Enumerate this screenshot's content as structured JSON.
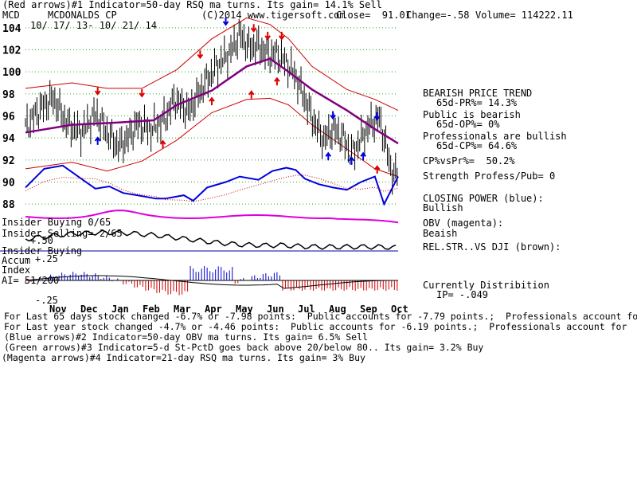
{
  "header": {
    "line1": "(Red arrows)#1 Indicator=50-day RSQ ma turns. Its gain= 14.1% Sell",
    "ticker": "MCD",
    "company": "MCDONALDS CP",
    "copyright": "(C)2014 www.tigersoft.com",
    "close": "Close=  91.01",
    "change": "Change=-.58",
    "volume": "Volume= 114222.11",
    "dates": "10/ 17/ 13- 10/ 21/ 14"
  },
  "panels": {
    "insider_buying": "Insider Buying 0/65",
    "insider_selling": "Insider Selling= 2/65",
    "plus50": "+.50",
    "accum1": "Insider Buying",
    "accum2": "Accum",
    "accum3": "Index",
    "plus25": "+.25",
    "ai": "AI= 51/200",
    "minus25": "-.25"
  },
  "right_panel": {
    "trend": "BEARISH PRICE TREND",
    "pr": "65d-PR%= 14.3%",
    "public1": "Public is bearish",
    "op": "65d-OP%= 0%",
    "pros1": "Professionals are bullish",
    "cp": "65d-CP%= 64.6%",
    "cpvspr": "CP%vsPr%=  50.2%",
    "strength": "Strength Profess/Pub= 0",
    "closing1": "CLOSING POWER (blue):",
    "closing2": "Bullish",
    "obv1": "OBV (magenta):",
    "obv2": "Beaish",
    "relstr": "REL.STR..VS DJI (brown):",
    "dist1": "Currently Distribition",
    "dist2": "IP= -.049"
  },
  "footer": [
    "For Last 65 days stock changed -6.7% or -7.98 points:  Public accounts for -7.79 points.;  Professionals account for -.19 points.",
    "For Last year stock changed -4.7% or -4.46 points:  Public accounts for -6.19 points.;  Professionals account for  1.73 points.",
    "(Blue arrows)#2 Indicator=50-day OBV ma turns. Its gain= 6.5% Sell",
    "(Green arrows)#3 Indicator=5-d St-PctD goes back above 20/below 80.. Its gain= 3.2% Buy",
    "(Magenta arrows)#4 Indicator=21-day RSQ ma turns. Its gain= 3% Buy"
  ],
  "chart_data": {
    "type": "line",
    "x_labels": [
      "Nov",
      "Dec",
      "Jan",
      "Feb",
      "Mar",
      "Apr",
      "May",
      "Jun",
      "Jul",
      "Aug",
      "Sep",
      "Oct"
    ],
    "price_ticks": [
      88,
      90,
      92,
      94,
      96,
      98,
      100,
      102,
      104
    ],
    "ylim": [
      87,
      105
    ],
    "price": [
      [
        0,
        95.0
      ],
      [
        6,
        96.6
      ],
      [
        12,
        97.6
      ],
      [
        18,
        95.2
      ],
      [
        24,
        94.5
      ],
      [
        30,
        96.2
      ],
      [
        36,
        94.2
      ],
      [
        40,
        93.2
      ],
      [
        44,
        94.0
      ],
      [
        48,
        95.3
      ],
      [
        54,
        94.7
      ],
      [
        60,
        95.8
      ],
      [
        64,
        97.5
      ],
      [
        70,
        96.4
      ],
      [
        76,
        98.6
      ],
      [
        82,
        100.5
      ],
      [
        88,
        101.8
      ],
      [
        92,
        103.4
      ],
      [
        96,
        102.2
      ],
      [
        100,
        102.4
      ],
      [
        104,
        101.5
      ],
      [
        108,
        101.6
      ],
      [
        112,
        100.8
      ],
      [
        116,
        99.6
      ],
      [
        120,
        97.5
      ],
      [
        124,
        95.4
      ],
      [
        128,
        93.8
      ],
      [
        132,
        94.8
      ],
      [
        136,
        94.1
      ],
      [
        140,
        92.5
      ],
      [
        144,
        93.9
      ],
      [
        148,
        95.2
      ],
      [
        152,
        95.8
      ],
      [
        154,
        94.0
      ],
      [
        156,
        92.0
      ],
      [
        158,
        90.5
      ],
      [
        160,
        91.0
      ]
    ],
    "ma": [
      [
        0,
        94.5
      ],
      [
        20,
        95.2
      ],
      [
        40,
        95.4
      ],
      [
        55,
        95.6
      ],
      [
        65,
        97.0
      ],
      [
        80,
        98.3
      ],
      [
        95,
        100.5
      ],
      [
        105,
        101.2
      ],
      [
        113,
        100.0
      ],
      [
        123,
        98.4
      ],
      [
        138,
        96.5
      ],
      [
        150,
        94.8
      ],
      [
        160,
        93.5
      ]
    ],
    "band_upper": [
      [
        0,
        98.5
      ],
      [
        20,
        99.0
      ],
      [
        35,
        98.5
      ],
      [
        50,
        98.5
      ],
      [
        65,
        100.2
      ],
      [
        80,
        103.0
      ],
      [
        95,
        104.9
      ],
      [
        105,
        104.3
      ],
      [
        113,
        103.0
      ],
      [
        123,
        100.5
      ],
      [
        138,
        98.4
      ],
      [
        150,
        97.5
      ],
      [
        160,
        96.5
      ]
    ],
    "band_lower": [
      [
        0,
        91.2
      ],
      [
        20,
        91.8
      ],
      [
        35,
        91.0
      ],
      [
        50,
        91.9
      ],
      [
        65,
        93.8
      ],
      [
        80,
        96.3
      ],
      [
        95,
        97.5
      ],
      [
        105,
        97.6
      ],
      [
        113,
        97.0
      ],
      [
        123,
        95.2
      ],
      [
        138,
        93.0
      ],
      [
        150,
        91.2
      ],
      [
        160,
        90.5
      ]
    ],
    "closing_power": [
      [
        0,
        89.5
      ],
      [
        8,
        91.2
      ],
      [
        16,
        91.5
      ],
      [
        24,
        90.3
      ],
      [
        30,
        89.4
      ],
      [
        36,
        89.6
      ],
      [
        42,
        89.0
      ],
      [
        48,
        88.8
      ],
      [
        56,
        88.5
      ],
      [
        60,
        88.5
      ],
      [
        68,
        88.8
      ],
      [
        72,
        88.3
      ],
      [
        78,
        89.5
      ],
      [
        86,
        90.0
      ],
      [
        92,
        90.5
      ],
      [
        100,
        90.2
      ],
      [
        106,
        91.0
      ],
      [
        112,
        91.3
      ],
      [
        116,
        91.1
      ],
      [
        120,
        90.3
      ],
      [
        126,
        89.8
      ],
      [
        132,
        89.5
      ],
      [
        138,
        89.3
      ],
      [
        144,
        90.0
      ],
      [
        150,
        90.5
      ],
      [
        154,
        88.0
      ],
      [
        160,
        90.5
      ]
    ]
  }
}
